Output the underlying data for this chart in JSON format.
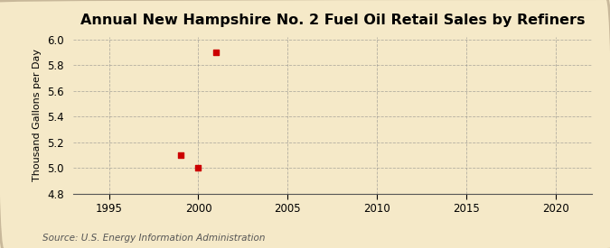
{
  "title": "Annual New Hampshire No. 2 Fuel Oil Retail Sales by Refiners",
  "ylabel": "Thousand Gallons per Day",
  "source": "Source: U.S. Energy Information Administration",
  "x_data": [
    1999,
    2000,
    2001
  ],
  "y_data": [
    5.1,
    5.0,
    5.9
  ],
  "marker_color": "#cc0000",
  "marker_size": 18,
  "xlim": [
    1993,
    2022
  ],
  "ylim": [
    4.8,
    6.02
  ],
  "xticks": [
    1995,
    2000,
    2005,
    2010,
    2015,
    2020
  ],
  "yticks": [
    4.8,
    5.0,
    5.2,
    5.4,
    5.6,
    5.8,
    6.0
  ],
  "background_color": "#f5e9c8",
  "plot_bg_color": "#f5e9c8",
  "grid_color": "#888888",
  "title_fontsize": 11.5,
  "label_fontsize": 8,
  "tick_fontsize": 8.5,
  "source_fontsize": 7.5,
  "border_color": "#c8b89a"
}
